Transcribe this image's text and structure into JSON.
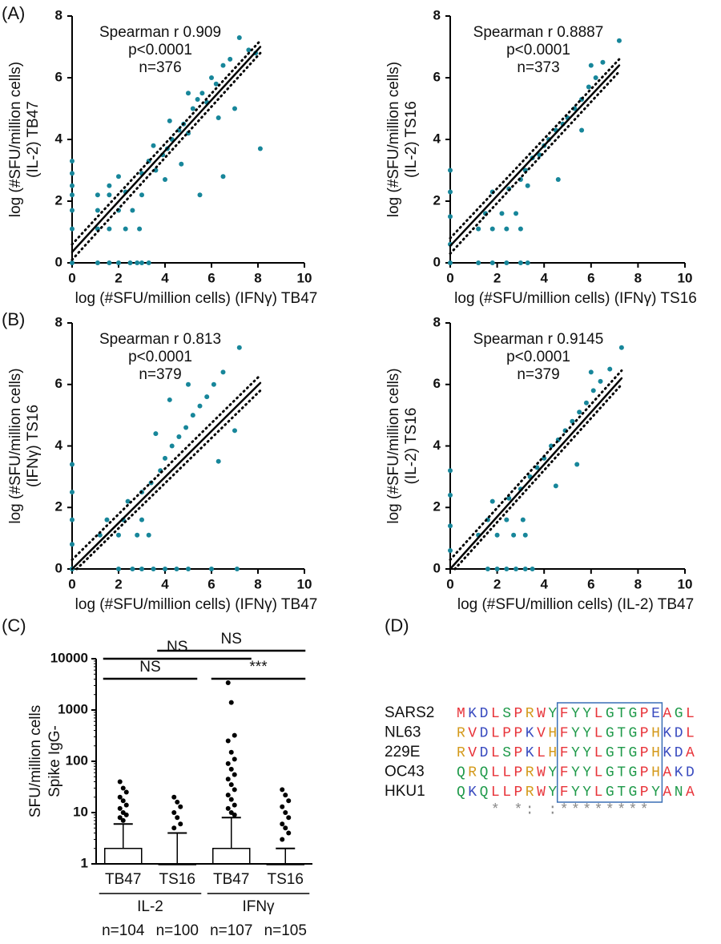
{
  "panel_labels": [
    "(A)",
    "(B)",
    "(C)",
    "(D)"
  ],
  "chart_data": [
    {
      "type": "scatter",
      "annotations": [
        "Spearman r 0.909",
        "p<0.0001",
        "n=376"
      ],
      "xlabel": "log (#SFU/million cells) (IFNγ) TB47",
      "ylabel": [
        "log (#SFU/million cells)",
        "(IL-2) TB47"
      ],
      "color": "#17869a",
      "xlim": [
        0,
        10
      ],
      "xticks": [
        0,
        2,
        4,
        6,
        8,
        10
      ],
      "ylim": [
        0,
        8
      ],
      "yticks": [
        0,
        2,
        4,
        6,
        8
      ],
      "x": [
        0,
        0,
        0,
        0,
        0,
        0,
        0,
        1.1,
        1.6,
        2.0,
        2.5,
        2.8,
        3.0,
        3.3,
        1.1,
        1.6,
        2.3,
        2.9,
        1.1,
        2.0,
        2.6,
        1.1,
        1.6,
        2.3,
        3.0,
        1.6,
        2.0,
        3.0,
        3.3,
        3.6,
        3.9,
        4.1,
        4.3,
        4.6,
        4.8,
        5.0,
        5.2,
        5.4,
        5.6,
        5.8,
        6.0,
        6.2,
        6.5,
        6.8,
        7.2,
        7.0,
        7.6,
        8.1,
        7.9,
        4.0,
        4.7,
        5.5,
        4.2,
        5.0,
        3.5,
        6.3,
        6.5
      ],
      "y": [
        3.3,
        2.9,
        2.5,
        2.2,
        1.7,
        1.1,
        0,
        0,
        0,
        0,
        0,
        0,
        0,
        0,
        1.1,
        1.1,
        1.1,
        1.1,
        1.7,
        1.7,
        1.7,
        2.2,
        2.2,
        2.3,
        2.2,
        2.5,
        2.8,
        2.9,
        3.3,
        3.0,
        3.5,
        3.7,
        4.0,
        4.3,
        4.5,
        4.2,
        5.0,
        5.3,
        5.5,
        5.2,
        6.0,
        5.8,
        6.4,
        6.6,
        7.3,
        5.0,
        6.9,
        3.7,
        6.8,
        2.7,
        3.2,
        2.2,
        4.6,
        5.5,
        3.8,
        4.7,
        2.8
      ],
      "fit": {
        "x": [
          0,
          8.1
        ],
        "y": [
          0.35,
          7.0
        ]
      },
      "ci_upper": {
        "x": [
          0,
          8.1
        ],
        "y": [
          0.6,
          7.2
        ]
      },
      "ci_lower": {
        "x": [
          0,
          8.1
        ],
        "y": [
          0.1,
          6.8
        ]
      }
    },
    {
      "type": "scatter",
      "annotations": [
        "Spearman r 0.8887",
        "p<0.0001",
        "n=373"
      ],
      "xlabel": "log (#SFU/million cells) (IFNγ) TS16",
      "ylabel": [
        "log (#SFU/million cells)",
        "(IL-2) TS16"
      ],
      "color": "#17869a",
      "xlim": [
        0,
        10
      ],
      "xticks": [
        0,
        2,
        4,
        6,
        8,
        10
      ],
      "ylim": [
        0,
        8
      ],
      "yticks": [
        0,
        2,
        4,
        6,
        8
      ],
      "x": [
        0,
        0,
        0,
        0,
        0,
        1.2,
        1.8,
        2.4,
        3.0,
        3.3,
        1.2,
        1.8,
        2.4,
        3.0,
        1.5,
        2.2,
        2.8,
        1.8,
        2.5,
        3.0,
        3.2,
        3.5,
        3.8,
        4.0,
        4.2,
        4.5,
        4.8,
        5.0,
        5.3,
        5.6,
        5.9,
        6.2,
        6.5,
        7.2,
        4.6,
        5.6,
        3.3,
        6.0
      ],
      "y": [
        3.0,
        2.3,
        1.5,
        0.6,
        0,
        0,
        0,
        0,
        0,
        0,
        1.1,
        1.1,
        1.1,
        1.1,
        1.6,
        1.6,
        1.6,
        2.3,
        2.4,
        2.7,
        3.0,
        3.4,
        3.5,
        3.8,
        4.0,
        4.3,
        4.5,
        4.7,
        5.0,
        5.3,
        5.7,
        6.0,
        6.5,
        7.2,
        2.7,
        4.3,
        2.5,
        6.4
      ],
      "fit": {
        "x": [
          0,
          7.2
        ],
        "y": [
          0.55,
          6.4
        ]
      },
      "ci_upper": {
        "x": [
          0,
          7.2
        ],
        "y": [
          0.8,
          6.6
        ]
      },
      "ci_lower": {
        "x": [
          0,
          7.2
        ],
        "y": [
          0.3,
          6.2
        ]
      }
    },
    {
      "type": "scatter",
      "annotations": [
        "Spearman r 0.813",
        "p<0.0001",
        "n=379"
      ],
      "xlabel": "log (#SFU/million cells) (IFNγ) TB47",
      "ylabel": [
        "log (#SFU/million cells)",
        "(IFNγ) TS16"
      ],
      "color": "#17869a",
      "xlim": [
        0,
        10
      ],
      "xticks": [
        0,
        2,
        4,
        6,
        8,
        10
      ],
      "ylim": [
        0,
        8
      ],
      "yticks": [
        0,
        2,
        4,
        6,
        8
      ],
      "x": [
        0,
        0,
        0,
        0,
        0,
        2.0,
        2.6,
        3.0,
        3.5,
        4.0,
        4.5,
        5.0,
        6.0,
        7.1,
        1.2,
        2.0,
        2.8,
        3.3,
        1.5,
        2.2,
        3.0,
        2.4,
        3.0,
        3.4,
        3.8,
        4.0,
        4.3,
        4.6,
        4.9,
        5.2,
        5.5,
        5.8,
        6.1,
        6.5,
        7.2,
        7.0,
        4.2,
        5.0,
        3.6,
        6.3
      ],
      "y": [
        3.4,
        2.5,
        1.6,
        0.8,
        0,
        0,
        0,
        0,
        0,
        0,
        0,
        0,
        0,
        0,
        1.1,
        1.1,
        1.1,
        1.1,
        1.6,
        1.6,
        1.6,
        2.2,
        2.5,
        2.8,
        3.2,
        3.6,
        4.0,
        4.3,
        4.6,
        5.0,
        5.3,
        5.6,
        6.0,
        6.4,
        7.2,
        4.5,
        5.5,
        6.0,
        4.4,
        3.5
      ],
      "fit": {
        "x": [
          0,
          8.1
        ],
        "y": [
          0,
          6.05
        ]
      },
      "ci_upper": {
        "x": [
          0,
          8.1
        ],
        "y": [
          0.3,
          6.3
        ]
      },
      "ci_lower": {
        "x": [
          0.2,
          8.1
        ],
        "y": [
          0,
          5.8
        ]
      }
    },
    {
      "type": "scatter",
      "annotations": [
        "Spearman r 0.9145",
        "p<0.0001",
        "n=379"
      ],
      "xlabel": "log (#SFU/million cells) (IL-2) TB47",
      "ylabel": [
        "log (#SFU/million cells)",
        "(IL-2) TS16"
      ],
      "color": "#17869a",
      "xlim": [
        0,
        10
      ],
      "xticks": [
        0,
        2,
        4,
        6,
        8,
        10
      ],
      "ylim": [
        0,
        8
      ],
      "yticks": [
        0,
        2,
        4,
        6,
        8
      ],
      "x": [
        0,
        0,
        0,
        0,
        1.6,
        2.0,
        2.4,
        2.8,
        3.2,
        3.5,
        1.2,
        2.0,
        2.7,
        3.2,
        1.6,
        2.4,
        3.1,
        1.8,
        2.5,
        3.0,
        3.4,
        3.7,
        4.0,
        4.3,
        4.6,
        4.9,
        5.2,
        5.5,
        5.8,
        6.1,
        6.4,
        6.8,
        7.3,
        5.4,
        4.5,
        6.0
      ],
      "y": [
        3.2,
        2.4,
        1.4,
        0.6,
        0,
        0,
        0,
        0,
        0,
        0,
        1.1,
        1.1,
        1.1,
        1.1,
        1.6,
        1.6,
        1.6,
        2.2,
        2.3,
        2.6,
        3.0,
        3.3,
        3.6,
        4.0,
        4.2,
        4.5,
        4.8,
        5.1,
        5.4,
        5.8,
        6.1,
        6.5,
        7.2,
        3.4,
        2.7,
        6.4
      ],
      "fit": {
        "x": [
          0,
          7.3
        ],
        "y": [
          0,
          6.2
        ]
      },
      "ci_upper": {
        "x": [
          0,
          7.3
        ],
        "y": [
          0.3,
          6.45
        ]
      },
      "ci_lower": {
        "x": [
          0.2,
          7.3
        ],
        "y": [
          0,
          6.0
        ]
      }
    },
    {
      "type": "box",
      "ylabel": [
        "SFU/million cells",
        "Spike IgG-"
      ],
      "log_scale": true,
      "ylim": [
        1,
        10000
      ],
      "yticks": [
        1,
        10,
        100,
        1000,
        10000
      ],
      "categories": [
        "TB47",
        "TS16",
        "TB47",
        "TS16"
      ],
      "groups": [
        "IL-2",
        "IFNγ"
      ],
      "n_labels": [
        "n=104",
        "n=100",
        "n=107",
        "n=105"
      ],
      "q1": [
        1,
        1,
        1,
        1
      ],
      "median": [
        1,
        1,
        1,
        1
      ],
      "q3": [
        2,
        1,
        2,
        1
      ],
      "whisker_high": [
        6,
        4,
        8,
        2
      ],
      "outliers": [
        [
          40,
          30,
          25,
          20,
          17,
          14,
          12,
          10,
          9,
          8,
          7
        ],
        [
          20,
          16,
          13,
          10,
          8,
          6,
          5
        ],
        [
          3400,
          1400,
          320,
          250,
          150,
          110,
          90,
          70,
          55,
          45,
          35,
          28,
          22,
          18,
          14,
          12,
          10,
          9
        ],
        [
          28,
          22,
          17,
          13,
          10,
          8,
          6,
          5,
          4,
          3
        ]
      ],
      "comparisons": [
        {
          "label": "NS",
          "pair": [
            0,
            1
          ]
        },
        {
          "label": "NS",
          "pair": [
            0,
            2
          ]
        },
        {
          "label": "NS",
          "pair": [
            1,
            3
          ]
        },
        {
          "label": "***",
          "pair": [
            2,
            3
          ]
        }
      ]
    }
  ],
  "alignment": {
    "rows": [
      {
        "name": "SARS2",
        "sequence": "MKDLSPRWYFYYLGTGPEAGL"
      },
      {
        "name": "NL63",
        "sequence": "RVDLPPKVHFYYLGTGPHKDL"
      },
      {
        "name": "229E",
        "sequence": "RVDLSPKLHFYYLGTGPHKDA"
      },
      {
        "name": "OC43",
        "sequence": "QRQLLPRWYFYYLGTGPHAKD"
      },
      {
        "name": "HKU1",
        "sequence": "QKQLLPRWYFYYLGTGPYANA"
      }
    ],
    "conservation": "   * *: :********    "
  }
}
